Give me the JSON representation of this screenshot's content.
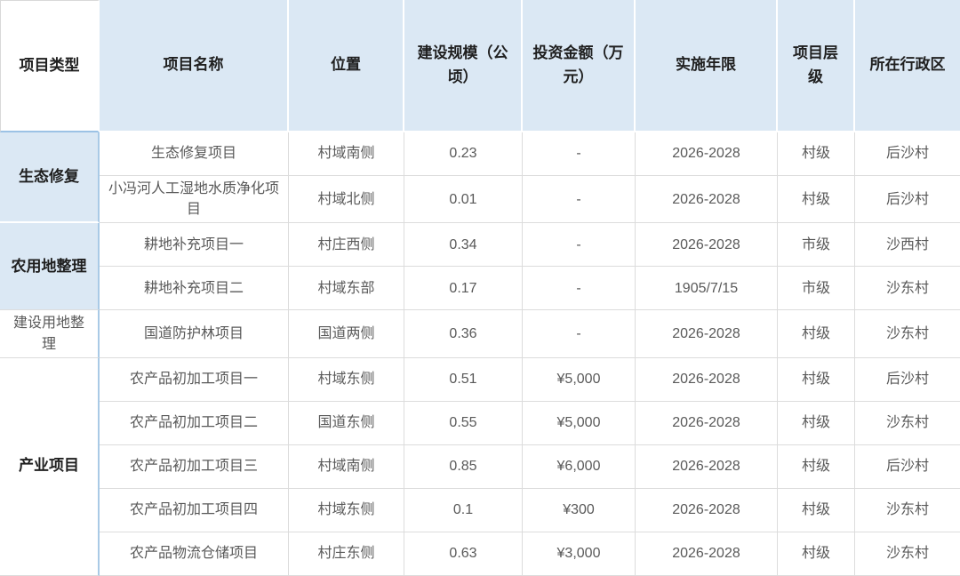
{
  "colors": {
    "header_background": "#dbe8f4",
    "group_highlight_background": "#dbe8f4",
    "blue_accent_border": "#9cc2e5",
    "grid_border": "#dcdcdc",
    "body_text": "#595959",
    "header_text": "#1f1f1f"
  },
  "table": {
    "columns": [
      {
        "key": "type",
        "label": "项目类型"
      },
      {
        "key": "name",
        "label": "项目名称"
      },
      {
        "key": "location",
        "label": "位置"
      },
      {
        "key": "scale",
        "label": "建设规模（公顷）"
      },
      {
        "key": "investment",
        "label": "投资金额（万元）"
      },
      {
        "key": "years",
        "label": "实施年限"
      },
      {
        "key": "level",
        "label": "项目层级"
      },
      {
        "key": "district",
        "label": "所在行政区"
      }
    ],
    "groups": [
      {
        "key": "eco-restoration",
        "type": "生态修复",
        "style": "g-blue",
        "rows": [
          [
            "生态修复项目",
            "村域南侧",
            "0.23",
            "-",
            "2026-2028",
            "村级",
            "后沙村"
          ],
          [
            "小冯河人工湿地水质净化项目",
            "村域北侧",
            "0.01",
            "-",
            "2026-2028",
            "村级",
            "后沙村"
          ]
        ]
      },
      {
        "key": "farmland-consolidation",
        "type": "农用地整理",
        "style": "g-blue",
        "rows": [
          [
            "耕地补充项目一",
            "村庄西侧",
            "0.34",
            "-",
            "2026-2028",
            "市级",
            "沙西村"
          ],
          [
            "耕地补充项目二",
            "村域东部",
            "0.17",
            "-",
            "1905/7/15",
            "市级",
            "沙东村"
          ]
        ]
      },
      {
        "key": "construction-land-consolidation",
        "type": "建设用地整理",
        "style": "g-plain",
        "rows": [
          [
            "国道防护林项目",
            "国道两侧",
            "0.36",
            "-",
            "2026-2028",
            "村级",
            "沙东村"
          ]
        ]
      },
      {
        "key": "industry-projects",
        "type": "产业项目",
        "style": "g-white-bold",
        "rows": [
          [
            "农产品初加工项目一",
            "村域东侧",
            "0.51",
            "¥5,000",
            "2026-2028",
            "村级",
            "后沙村"
          ],
          [
            "农产品初加工项目二",
            "国道东侧",
            "0.55",
            "¥5,000",
            "2026-2028",
            "村级",
            "沙东村"
          ],
          [
            "农产品初加工项目三",
            "村域南侧",
            "0.85",
            "¥6,000",
            "2026-2028",
            "村级",
            "后沙村"
          ],
          [
            "农产品初加工项目四",
            "村域东侧",
            "0.1",
            "¥300",
            "2026-2028",
            "村级",
            "沙东村"
          ],
          [
            "农产品物流仓储项目",
            "村庄东侧",
            "0.63",
            "¥3,000",
            "2026-2028",
            "村级",
            "沙东村"
          ]
        ]
      }
    ]
  }
}
